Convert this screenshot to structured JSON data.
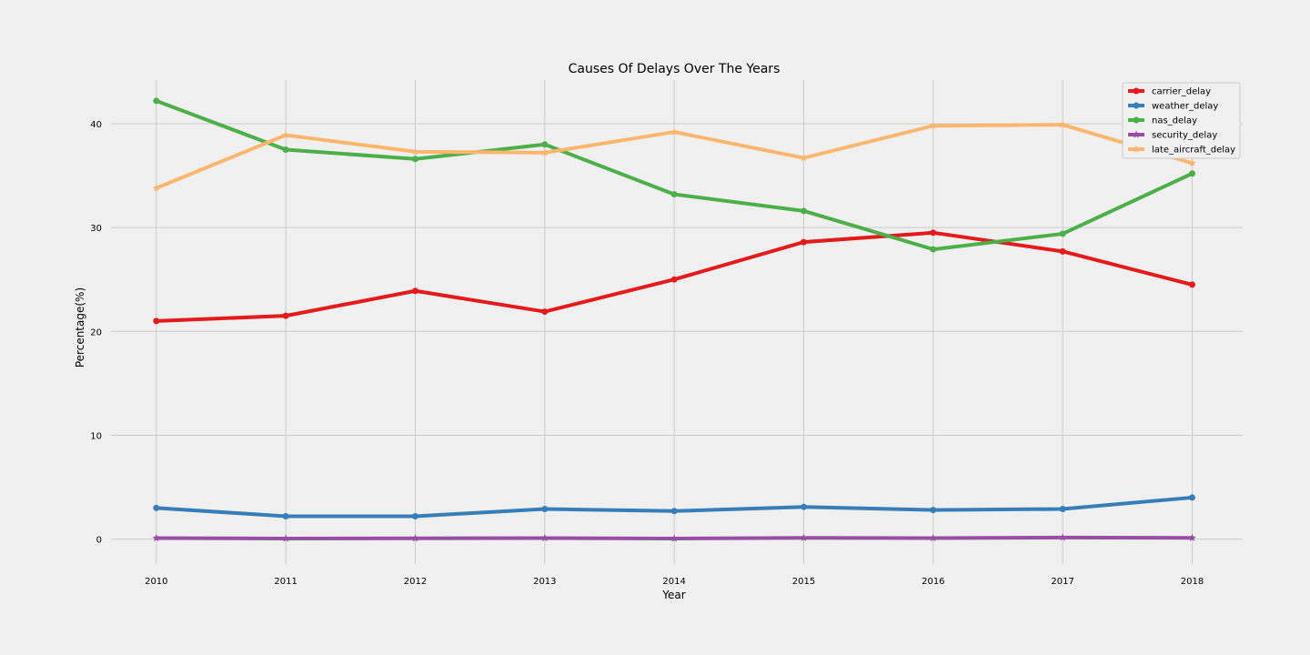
{
  "chart_data": {
    "type": "line",
    "title": "Causes Of Delays Over The Years",
    "xlabel": "Year",
    "ylabel": "Percentage(%)",
    "x": [
      2010,
      2011,
      2012,
      2013,
      2014,
      2015,
      2016,
      2017,
      2018
    ],
    "xlim": [
      2009.65,
      2018.39
    ],
    "ylim": [
      -2.4,
      44.2
    ],
    "yticks": [
      0,
      10,
      20,
      30,
      40
    ],
    "grid": true,
    "legend_position": "top-right",
    "series": [
      {
        "name": "carrier_delay",
        "color": "#e41a1c",
        "marker": "circle",
        "values": [
          21.0,
          21.5,
          23.9,
          21.9,
          25.0,
          28.6,
          29.5,
          27.7,
          24.5
        ]
      },
      {
        "name": "weather_delay",
        "color": "#377eb8",
        "marker": "circle",
        "values": [
          3.0,
          2.2,
          2.2,
          2.9,
          2.7,
          3.1,
          2.8,
          2.9,
          4.0
        ]
      },
      {
        "name": "nas_delay",
        "color": "#4daf4a",
        "marker": "circle",
        "values": [
          42.2,
          37.5,
          36.6,
          38.0,
          33.2,
          31.6,
          27.9,
          29.4,
          35.2
        ]
      },
      {
        "name": "security_delay",
        "color": "#984ea3",
        "marker": "star",
        "values": [
          0.1,
          0.05,
          0.08,
          0.1,
          0.05,
          0.12,
          0.1,
          0.15,
          0.12
        ]
      },
      {
        "name": "late_aircraft_delay",
        "color": "#fdb66e",
        "marker": "star",
        "values": [
          33.8,
          38.9,
          37.3,
          37.2,
          39.2,
          36.7,
          39.8,
          39.9,
          36.2
        ]
      }
    ]
  }
}
